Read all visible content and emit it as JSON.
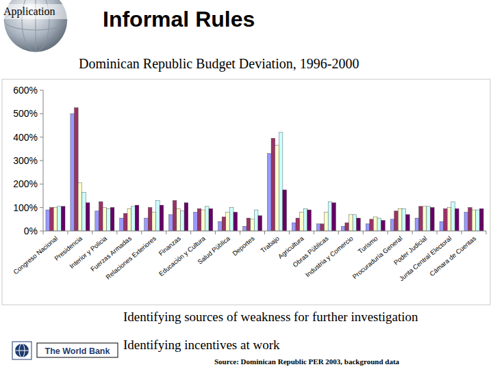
{
  "slide": {
    "label": "Application",
    "title": "Informal Rules",
    "bullets": [
      "Identifying sources of weakness for further investigation",
      "Identifying incentives at work"
    ],
    "logo": "The World Bank",
    "source": "Source: Dominican Republic PER 2003, background data"
  },
  "chart_data": {
    "type": "bar",
    "title": "Dominican Republic Budget Deviation, 1996-2000",
    "categories": [
      "Congreso Nacional",
      "Presidencia",
      "Interior y Policia",
      "Fuerzas Armadas",
      "Relaciones Exteriores",
      "Finanzas",
      "Educación y Cultura",
      "Salud Pública",
      "Deportes",
      "Trabajo",
      "Agricultura",
      "Obras Públicas",
      "Industria y Comercio",
      "Turismo",
      "Procuraduría General",
      "Poder Judicial",
      "Junta Central Electoral",
      "Cámara de Cuentas"
    ],
    "series": [
      {
        "color": "#9999ff",
        "values": [
          90,
          500,
          85,
          55,
          55,
          70,
          80,
          40,
          20,
          330,
          35,
          30,
          20,
          30,
          50,
          55,
          40,
          80
        ]
      },
      {
        "color": "#993366",
        "values": [
          100,
          525,
          125,
          75,
          100,
          130,
          95,
          60,
          55,
          395,
          55,
          30,
          35,
          50,
          85,
          105,
          95,
          100
        ]
      },
      {
        "color": "#ffffcc",
        "values": [
          100,
          205,
          100,
          95,
          80,
          95,
          90,
          80,
          50,
          365,
          80,
          80,
          70,
          60,
          95,
          105,
          100,
          90
        ]
      },
      {
        "color": "#ccffff",
        "values": [
          105,
          165,
          95,
          105,
          130,
          85,
          105,
          100,
          90,
          420,
          95,
          125,
          70,
          55,
          95,
          105,
          125,
          90
        ]
      },
      {
        "color": "#660066",
        "values": [
          105,
          120,
          100,
          110,
          110,
          120,
          95,
          80,
          65,
          175,
          90,
          120,
          55,
          45,
          70,
          100,
          95,
          95
        ]
      }
    ],
    "ylim": [
      0,
      600
    ],
    "yticks": [
      {
        "value": 0,
        "label": "0%"
      },
      {
        "value": 100,
        "label": "100%"
      },
      {
        "value": 200,
        "label": "200%"
      },
      {
        "value": 300,
        "label": "300%"
      },
      {
        "value": 400,
        "label": "400%"
      },
      {
        "value": 500,
        "label": "500%"
      },
      {
        "value": 600,
        "label": "600%"
      }
    ],
    "grid": false
  }
}
